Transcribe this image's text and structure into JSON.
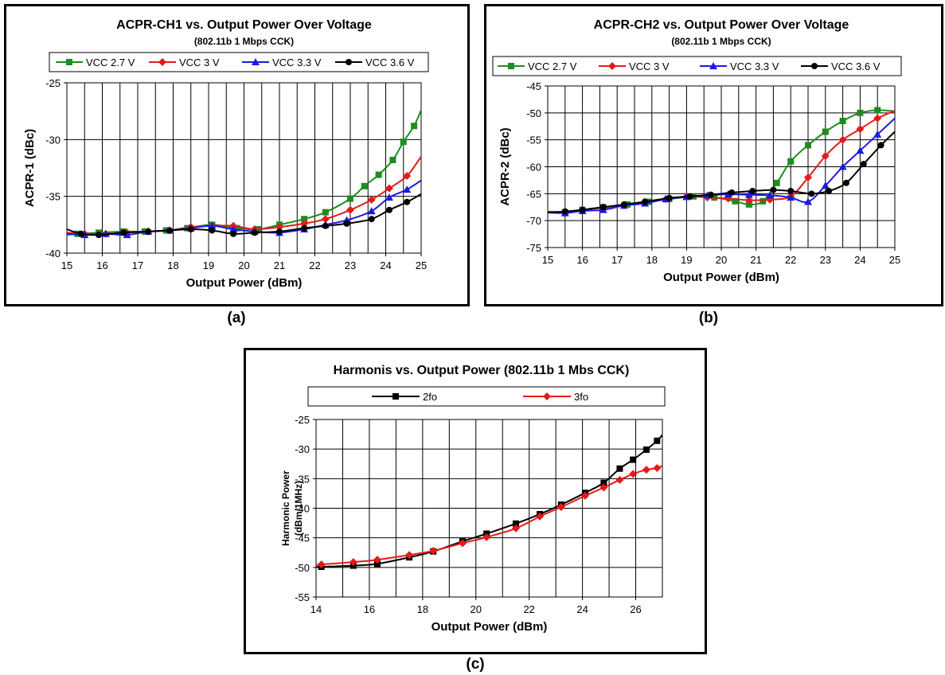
{
  "captions": [
    "(a)",
    "(b)",
    "(c)"
  ],
  "chart_data": [
    {
      "type": "line",
      "title": "ACPR-CH1 vs. Output Power Over Voltage",
      "subtitle": "(802.11b 1 Mbps CCK)",
      "xlabel": "Output Power (dBm)",
      "ylabel": "ACPR-1 (dBc)",
      "xlim": [
        15,
        25
      ],
      "ylim": [
        -40,
        -25
      ],
      "xticks": [
        15,
        16,
        17,
        18,
        19,
        20,
        21,
        22,
        23,
        24,
        25
      ],
      "yticks": [
        -40,
        -35,
        -30,
        -25
      ],
      "grid": true,
      "legend_position": "top",
      "series": [
        {
          "name": "VCC 2.7 V",
          "color": "#1e8c1e",
          "marker": "square",
          "x": [
            15,
            15.3,
            15.9,
            16.6,
            17.2,
            17.8,
            18.4,
            19.1,
            19.8,
            20.4,
            21,
            21.7,
            22.3,
            23,
            23.4,
            23.8,
            24.2,
            24.5,
            24.8,
            25
          ],
          "y": [
            -38.4,
            -38.3,
            -38.2,
            -38.1,
            -38.1,
            -38,
            -37.8,
            -37.5,
            -37.8,
            -37.9,
            -37.5,
            -37,
            -36.4,
            -35.2,
            -34.1,
            -33.1,
            -31.8,
            -30.2,
            -28.8,
            -27.4
          ]
        },
        {
          "name": "VCC 3 V",
          "color": "#e41a1a",
          "marker": "diamond",
          "x": [
            15,
            15.5,
            16.1,
            16.7,
            17.3,
            17.9,
            18.5,
            19.1,
            19.7,
            20.3,
            21,
            21.7,
            22.3,
            23,
            23.6,
            24.1,
            24.6,
            25
          ],
          "y": [
            -38.2,
            -38.3,
            -38.3,
            -38.2,
            -38.1,
            -38,
            -37.7,
            -37.6,
            -37.6,
            -37.9,
            -37.7,
            -37.4,
            -37,
            -36.2,
            -35.3,
            -34.3,
            -33.2,
            -31.5
          ]
        },
        {
          "name": "VCC 3.3 V",
          "color": "#1a1ae4",
          "marker": "triangle",
          "x": [
            15,
            15.5,
            16.1,
            16.7,
            17.3,
            17.9,
            18.5,
            19.1,
            19.7,
            20.3,
            21,
            21.7,
            22.3,
            22.9,
            23.6,
            24.1,
            24.6,
            25
          ],
          "y": [
            -38.3,
            -38.4,
            -38.3,
            -38.4,
            -38.1,
            -38,
            -37.8,
            -37.6,
            -37.9,
            -38.1,
            -38.2,
            -37.9,
            -37.5,
            -37.1,
            -36.3,
            -35.1,
            -34.4,
            -33.6
          ]
        },
        {
          "name": "VCC 3.6 V",
          "color": "#000000",
          "marker": "circle",
          "x": [
            15,
            15.4,
            15.9,
            16.6,
            17.3,
            17.9,
            18.5,
            19.1,
            19.7,
            20.3,
            21,
            21.7,
            22.3,
            22.9,
            23.6,
            24.1,
            24.6,
            25
          ],
          "y": [
            -37.9,
            -38.3,
            -38.4,
            -38.2,
            -38.1,
            -38,
            -37.9,
            -38,
            -38.3,
            -38.2,
            -38.1,
            -37.8,
            -37.6,
            -37.4,
            -37,
            -36.2,
            -35.5,
            -34.8
          ]
        }
      ]
    },
    {
      "type": "line",
      "title": "ACPR-CH2 vs. Output Power Over Voltage",
      "subtitle": "(802.11b 1 Mbps CCK)",
      "xlabel": "Output Power (dBm)",
      "ylabel": "ACPR-2 (dBc)",
      "xlim": [
        15,
        25
      ],
      "ylim": [
        -75,
        -45
      ],
      "xticks": [
        15,
        16,
        17,
        18,
        19,
        20,
        21,
        22,
        23,
        24,
        25
      ],
      "yticks": [
        -75,
        -70,
        -65,
        -60,
        -55,
        -50,
        -45
      ],
      "grid": true,
      "legend_position": "top",
      "series": [
        {
          "name": "VCC 2.7 V",
          "color": "#1e8c1e",
          "marker": "square",
          "x": [
            15,
            15.5,
            16,
            16.6,
            17.3,
            17.9,
            18.5,
            19.2,
            19.8,
            20.4,
            20.8,
            21.2,
            21.6,
            22,
            22.5,
            23,
            23.5,
            24,
            24.5,
            25
          ],
          "y": [
            -68.5,
            -68.5,
            -68,
            -67.5,
            -67,
            -66.5,
            -66,
            -65.5,
            -65.7,
            -66.4,
            -67,
            -66.4,
            -63,
            -59,
            -56,
            -53.5,
            -51.5,
            -50,
            -49.5,
            -49.7
          ]
        },
        {
          "name": "VCC 3 V",
          "color": "#e41a1a",
          "marker": "diamond",
          "x": [
            15,
            15.5,
            16,
            16.6,
            17.2,
            17.8,
            18.4,
            19,
            19.6,
            20.2,
            20.8,
            21.4,
            22,
            22.5,
            23,
            23.5,
            24,
            24.5,
            25
          ],
          "y": [
            -68.3,
            -68.4,
            -68,
            -67.6,
            -67.2,
            -66.5,
            -66,
            -65.5,
            -65.7,
            -65.9,
            -66.2,
            -66.1,
            -65.5,
            -62,
            -58,
            -55,
            -53,
            -51,
            -49.6
          ]
        },
        {
          "name": "VCC 3.3 V",
          "color": "#1a1ae4",
          "marker": "triangle",
          "x": [
            15,
            15.5,
            16,
            16.6,
            17.2,
            17.8,
            18.4,
            19,
            19.6,
            20.2,
            20.8,
            21.4,
            22,
            22.5,
            23,
            23.5,
            24,
            24.5,
            25
          ],
          "y": [
            -68.5,
            -68.6,
            -68.2,
            -68,
            -67.2,
            -66.8,
            -66,
            -65.6,
            -65.3,
            -65.1,
            -65.2,
            -65.3,
            -65.7,
            -66.5,
            -63.5,
            -60,
            -57,
            -54,
            -51
          ]
        },
        {
          "name": "VCC 3.6 V",
          "color": "#000000",
          "marker": "circle",
          "x": [
            15,
            15.5,
            16,
            16.6,
            17.2,
            17.8,
            18.5,
            19.1,
            19.7,
            20.3,
            20.9,
            21.5,
            22,
            22.6,
            23.1,
            23.6,
            24.1,
            24.6,
            25
          ],
          "y": [
            -68.5,
            -68.3,
            -68,
            -67.5,
            -67,
            -66.5,
            -65.8,
            -65.5,
            -65.2,
            -64.8,
            -64.5,
            -64.3,
            -64.5,
            -65,
            -64.5,
            -63,
            -59.5,
            -56,
            -53.5
          ]
        }
      ]
    },
    {
      "type": "line",
      "title": "Harmonis vs. Output Power (802.11b 1 Mbs CCK)",
      "xlabel": "Output Power (dBm)",
      "ylabel": "Harmonic Power (dBm/1MHz)",
      "ylabel_lines": [
        "Harmonic Power",
        "(dBm/1MHz)"
      ],
      "xlim": [
        14,
        27
      ],
      "ylim": [
        -55,
        -25
      ],
      "xticks": [
        14,
        16,
        18,
        20,
        22,
        24,
        26
      ],
      "yticks": [
        -55,
        -50,
        -45,
        -40,
        -35,
        -30,
        -25
      ],
      "grid": true,
      "legend_position": "top",
      "series": [
        {
          "name": "2fo",
          "color": "#000000",
          "marker": "square",
          "x": [
            14,
            14.2,
            15.4,
            16.3,
            17.5,
            18.4,
            19.5,
            20.4,
            21.5,
            22.4,
            23.2,
            24.1,
            24.8,
            25.4,
            25.9,
            26.4,
            26.8,
            27
          ],
          "y": [
            -49.9,
            -49.9,
            -49.7,
            -49.4,
            -48.3,
            -47.3,
            -45.6,
            -44.3,
            -42.6,
            -41,
            -39.4,
            -37.4,
            -35.7,
            -33.3,
            -31.8,
            -30.1,
            -28.6,
            -27.6
          ]
        },
        {
          "name": "3fo",
          "color": "#e41a1a",
          "marker": "diamond",
          "x": [
            14,
            14.2,
            15.4,
            16.3,
            17.5,
            18.4,
            19.5,
            20.4,
            21.5,
            22.4,
            23.2,
            24.1,
            24.8,
            25.4,
            25.9,
            26.4,
            26.8,
            27
          ],
          "y": [
            -49.6,
            -49.5,
            -49.1,
            -48.7,
            -47.9,
            -47.2,
            -45.9,
            -44.9,
            -43.4,
            -41.4,
            -39.8,
            -37.9,
            -36.5,
            -35.2,
            -34.2,
            -33.5,
            -33.2,
            -32.8
          ]
        }
      ]
    }
  ]
}
